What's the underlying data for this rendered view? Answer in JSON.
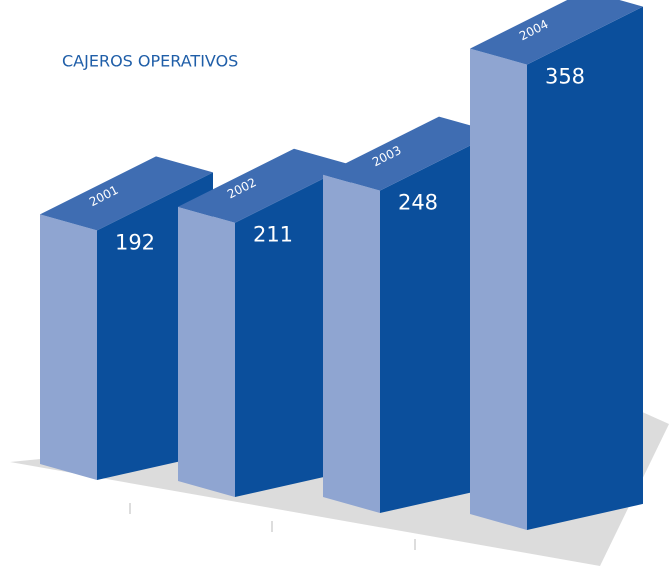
{
  "chart_data": {
    "type": "bar3d",
    "title": "CAJEROS OPERATIVOS",
    "categories": [
      "2001",
      "2002",
      "2003",
      "2004"
    ],
    "values": [
      192,
      211,
      248,
      358
    ],
    "colors": {
      "front": "#8fa5d1",
      "side": "#0b4f9c",
      "top": "#3f6db2"
    }
  }
}
